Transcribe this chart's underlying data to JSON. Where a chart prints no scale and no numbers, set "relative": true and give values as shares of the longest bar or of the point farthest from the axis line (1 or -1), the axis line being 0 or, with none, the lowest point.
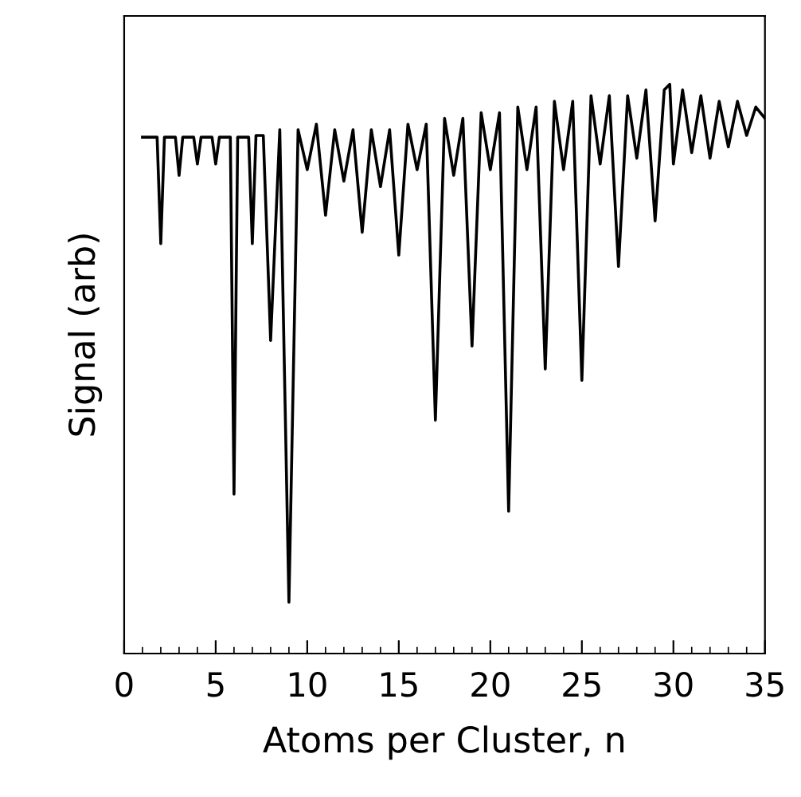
{
  "chart_data": {
    "type": "line",
    "xlabel": "Atoms per Cluster, n",
    "ylabel": "Signal (arb)",
    "relative": true,
    "color": "#000000",
    "grid": false,
    "legend": false,
    "marker": "none",
    "line_style": "solid",
    "xlim": [
      0,
      35
    ],
    "xticks": [
      0,
      {
        "value": 1,
        "label": null
      },
      {
        "value": 2,
        "label": null
      },
      {
        "value": 3,
        "label": null
      },
      {
        "value": 4,
        "label": null
      },
      5,
      {
        "value": 6,
        "label": null
      },
      {
        "value": 7,
        "label": null
      },
      {
        "value": 8,
        "label": null
      },
      {
        "value": 9,
        "label": null
      },
      10,
      {
        "value": 11,
        "label": null
      },
      {
        "value": 12,
        "label": null
      },
      {
        "value": 13,
        "label": null
      },
      {
        "value": 14,
        "label": null
      },
      15,
      {
        "value": 16,
        "label": null
      },
      {
        "value": 17,
        "label": null
      },
      {
        "value": 18,
        "label": null
      },
      {
        "value": 19,
        "label": null
      },
      20,
      {
        "value": 21,
        "label": null
      },
      {
        "value": 22,
        "label": null
      },
      {
        "value": 23,
        "label": null
      },
      {
        "value": 24,
        "label": null
      },
      25,
      {
        "value": 26,
        "label": null
      },
      {
        "value": 27,
        "label": null
      },
      {
        "value": 28,
        "label": null
      },
      {
        "value": 29,
        "label": null
      },
      30,
      {
        "value": 31,
        "label": null
      },
      {
        "value": 32,
        "label": null
      },
      {
        "value": 33,
        "label": null
      },
      {
        "value": 34,
        "label": null
      },
      35
    ],
    "x": [
      1,
      1.8,
      2,
      2.2,
      2.8,
      3,
      3.2,
      3.8,
      4,
      4.2,
      4.8,
      5,
      5.2,
      5.8,
      6,
      6.2,
      6.8,
      7,
      7.2,
      7.6,
      8,
      8.5,
      9,
      9.5,
      10,
      10.5,
      11,
      11.5,
      12,
      12.5,
      13,
      13.5,
      14,
      14.5,
      15,
      15.5,
      16,
      16.5,
      17,
      17.5,
      18,
      18.5,
      19,
      19.5,
      20,
      20.5,
      21,
      21.5,
      22,
      22.5,
      23,
      23.5,
      24,
      24.5,
      25,
      25.5,
      26,
      26.5,
      27,
      27.5,
      28,
      28.5,
      29,
      29.5,
      29.8,
      30,
      30.5,
      31,
      31.5,
      32,
      32.5,
      33,
      33.5,
      34,
      34.5,
      35
    ],
    "values": [
      0.907,
      0.907,
      0.72,
      0.907,
      0.907,
      0.84,
      0.907,
      0.907,
      0.86,
      0.907,
      0.907,
      0.86,
      0.907,
      0.907,
      0.28,
      0.907,
      0.907,
      0.72,
      0.91,
      0.91,
      0.55,
      0.92,
      0.09,
      0.92,
      0.85,
      0.93,
      0.77,
      0.92,
      0.83,
      0.92,
      0.74,
      0.92,
      0.82,
      0.92,
      0.7,
      0.93,
      0.85,
      0.93,
      0.41,
      0.94,
      0.84,
      0.94,
      0.54,
      0.95,
      0.85,
      0.95,
      0.25,
      0.96,
      0.85,
      0.96,
      0.5,
      0.97,
      0.85,
      0.97,
      0.48,
      0.98,
      0.86,
      0.98,
      0.68,
      0.98,
      0.87,
      0.99,
      0.76,
      0.99,
      1.0,
      0.86,
      0.99,
      0.88,
      0.98,
      0.87,
      0.97,
      0.89,
      0.97,
      0.91,
      0.96,
      0.94
    ]
  }
}
